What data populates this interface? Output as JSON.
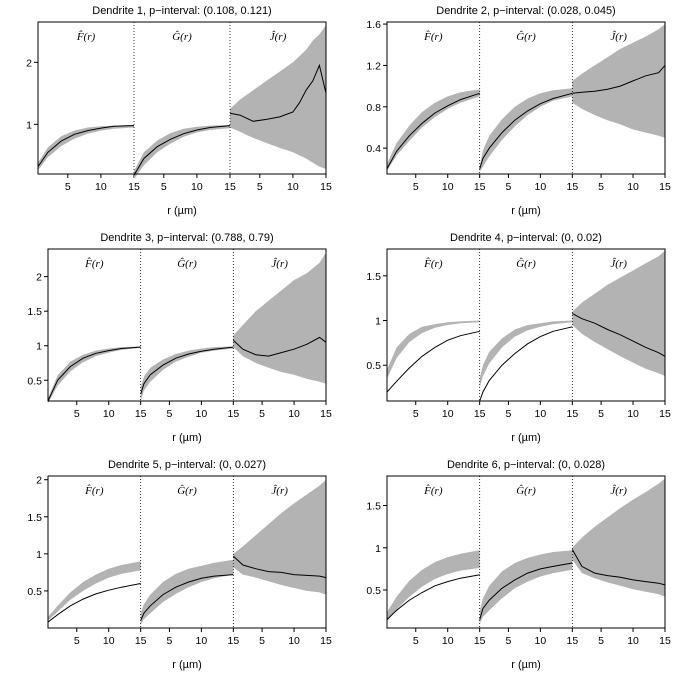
{
  "figure": {
    "xlabel": "r (µm)",
    "function_labels": [
      "F̂(r)",
      "Ĝ(r)",
      "Ĵ(r)"
    ]
  },
  "chart_data": [
    {
      "type": "line",
      "title": "Dendrite 1, p−interval: (0.108, 0.121)",
      "xlabel": "r (µm)",
      "x_ticks": [
        5,
        10,
        15
      ],
      "y_ticks": [
        1,
        2
      ],
      "ylim": [
        0.2,
        2.65
      ],
      "xlim": [
        0.5,
        15
      ],
      "grid": false,
      "panels": [
        {
          "name": "F̂(r)",
          "x": [
            0.5,
            2,
            4,
            6,
            8,
            10,
            12,
            15
          ],
          "observed": [
            0.32,
            0.55,
            0.73,
            0.84,
            0.9,
            0.94,
            0.97,
            0.98
          ],
          "envelope_lo": [
            0.26,
            0.47,
            0.65,
            0.77,
            0.85,
            0.9,
            0.93,
            0.95
          ],
          "envelope_hi": [
            0.38,
            0.63,
            0.81,
            0.9,
            0.95,
            0.97,
            0.98,
            0.99
          ]
        },
        {
          "name": "Ĝ(r)",
          "x": [
            0.5,
            2,
            4,
            6,
            8,
            10,
            12,
            15
          ],
          "observed": [
            0.18,
            0.45,
            0.64,
            0.76,
            0.85,
            0.91,
            0.95,
            0.98
          ],
          "envelope_lo": [
            0.12,
            0.34,
            0.55,
            0.69,
            0.8,
            0.87,
            0.91,
            0.94
          ],
          "envelope_hi": [
            0.25,
            0.55,
            0.74,
            0.86,
            0.93,
            0.96,
            0.98,
            0.99
          ]
        },
        {
          "name": "Ĵ(r)",
          "x": [
            0.5,
            2,
            4,
            6,
            8,
            10,
            11,
            12,
            13,
            14,
            15
          ],
          "observed": [
            1.18,
            1.15,
            1.05,
            1.08,
            1.12,
            1.2,
            1.35,
            1.55,
            1.7,
            1.95,
            1.5
          ],
          "envelope_lo": [
            0.95,
            0.88,
            0.78,
            0.7,
            0.62,
            0.55,
            0.5,
            0.45,
            0.38,
            0.32,
            0.28
          ],
          "envelope_hi": [
            1.25,
            1.4,
            1.55,
            1.7,
            1.85,
            2.0,
            2.1,
            2.2,
            2.35,
            2.45,
            2.6
          ]
        }
      ]
    },
    {
      "type": "line",
      "title": "Dendrite 2, p−interval: (0.028, 0.045)",
      "xlabel": "r (µm)",
      "x_ticks": [
        5,
        10,
        15
      ],
      "y_ticks": [
        0.4,
        0.8,
        1.2,
        1.6
      ],
      "ylim": [
        0.15,
        1.62
      ],
      "xlim": [
        0.5,
        15
      ],
      "grid": false,
      "panels": [
        {
          "name": "F̂(r)",
          "x": [
            0.5,
            2,
            4,
            6,
            8,
            10,
            12,
            15
          ],
          "observed": [
            0.2,
            0.37,
            0.52,
            0.64,
            0.74,
            0.81,
            0.87,
            0.93
          ],
          "envelope_lo": [
            0.18,
            0.33,
            0.47,
            0.6,
            0.7,
            0.78,
            0.84,
            0.9
          ],
          "envelope_hi": [
            0.25,
            0.45,
            0.62,
            0.75,
            0.84,
            0.9,
            0.94,
            0.97
          ]
        },
        {
          "name": "Ĝ(r)",
          "x": [
            0.5,
            1,
            2,
            4,
            6,
            8,
            10,
            12,
            15
          ],
          "observed": [
            0.2,
            0.3,
            0.4,
            0.55,
            0.67,
            0.76,
            0.83,
            0.88,
            0.93
          ],
          "envelope_lo": [
            0.17,
            0.22,
            0.32,
            0.48,
            0.61,
            0.72,
            0.8,
            0.86,
            0.9
          ],
          "envelope_hi": [
            0.22,
            0.38,
            0.52,
            0.68,
            0.8,
            0.88,
            0.93,
            0.96,
            0.98
          ]
        },
        {
          "name": "Ĵ(r)",
          "x": [
            0.5,
            2,
            4,
            6,
            8,
            10,
            12,
            14,
            15
          ],
          "observed": [
            0.93,
            0.94,
            0.95,
            0.97,
            1.0,
            1.05,
            1.1,
            1.13,
            1.2
          ],
          "envelope_lo": [
            0.84,
            0.78,
            0.72,
            0.67,
            0.63,
            0.58,
            0.55,
            0.52,
            0.5
          ],
          "envelope_hi": [
            1.05,
            1.12,
            1.2,
            1.28,
            1.36,
            1.42,
            1.48,
            1.55,
            1.6
          ]
        }
      ]
    },
    {
      "type": "line",
      "title": "Dendrite 3, p−interval: (0.788, 0.79)",
      "xlabel": "r (µm)",
      "x_ticks": [
        5,
        10,
        15
      ],
      "y_ticks": [
        0.5,
        1.0,
        1.5,
        2.0
      ],
      "ylim": [
        0.2,
        2.4
      ],
      "xlim": [
        0.5,
        15
      ],
      "grid": false,
      "panels": [
        {
          "name": "F̂(r)",
          "x": [
            0.5,
            2,
            4,
            6,
            8,
            10,
            12,
            15
          ],
          "observed": [
            0.2,
            0.5,
            0.7,
            0.82,
            0.89,
            0.93,
            0.96,
            0.98
          ],
          "envelope_lo": [
            0.17,
            0.42,
            0.63,
            0.76,
            0.85,
            0.9,
            0.94,
            0.97
          ],
          "envelope_hi": [
            0.24,
            0.57,
            0.77,
            0.87,
            0.93,
            0.96,
            0.98,
            0.99
          ]
        },
        {
          "name": "Ĝ(r)",
          "x": [
            0.5,
            1,
            2,
            4,
            6,
            8,
            10,
            12,
            15
          ],
          "observed": [
            0.3,
            0.45,
            0.58,
            0.72,
            0.82,
            0.88,
            0.92,
            0.95,
            0.98
          ],
          "envelope_lo": [
            0.2,
            0.35,
            0.48,
            0.65,
            0.77,
            0.84,
            0.9,
            0.93,
            0.96
          ],
          "envelope_hi": [
            0.4,
            0.55,
            0.68,
            0.8,
            0.88,
            0.93,
            0.96,
            0.98,
            0.99
          ]
        },
        {
          "name": "Ĵ(r)",
          "x": [
            0.5,
            2,
            4,
            6,
            8,
            10,
            12,
            14,
            15
          ],
          "observed": [
            1.08,
            0.95,
            0.87,
            0.85,
            0.9,
            0.95,
            1.02,
            1.12,
            1.05
          ],
          "envelope_lo": [
            0.98,
            0.85,
            0.75,
            0.68,
            0.62,
            0.58,
            0.52,
            0.48,
            0.45
          ],
          "envelope_hi": [
            1.15,
            1.3,
            1.5,
            1.65,
            1.8,
            1.95,
            2.05,
            2.2,
            2.35
          ]
        }
      ]
    },
    {
      "type": "line",
      "title": "Dendrite 4, p−interval: (0, 0.02)",
      "xlabel": "r (µm)",
      "x_ticks": [
        5,
        10,
        15
      ],
      "y_ticks": [
        0.5,
        1.0,
        1.5
      ],
      "ylim": [
        0.1,
        1.8
      ],
      "xlim": [
        0.5,
        15
      ],
      "grid": false,
      "panels": [
        {
          "name": "F̂(r)",
          "x": [
            0.5,
            2,
            4,
            6,
            8,
            10,
            12,
            15
          ],
          "observed": [
            0.2,
            0.32,
            0.47,
            0.6,
            0.7,
            0.78,
            0.83,
            0.88
          ],
          "envelope_lo": [
            0.35,
            0.58,
            0.76,
            0.86,
            0.92,
            0.95,
            0.97,
            0.98
          ],
          "envelope_hi": [
            0.45,
            0.7,
            0.85,
            0.93,
            0.96,
            0.98,
            0.99,
            1.0
          ]
        },
        {
          "name": "Ĝ(r)",
          "x": [
            0.5,
            1,
            2,
            4,
            6,
            8,
            10,
            12,
            15
          ],
          "observed": [
            0.1,
            0.2,
            0.33,
            0.5,
            0.63,
            0.74,
            0.82,
            0.88,
            0.93
          ],
          "envelope_lo": [
            0.25,
            0.38,
            0.52,
            0.7,
            0.82,
            0.89,
            0.93,
            0.96,
            0.98
          ],
          "envelope_hi": [
            0.35,
            0.5,
            0.65,
            0.8,
            0.9,
            0.95,
            0.97,
            0.99,
            1.0
          ]
        },
        {
          "name": "Ĵ(r)",
          "x": [
            0.5,
            2,
            4,
            6,
            8,
            10,
            12,
            14,
            15
          ],
          "observed": [
            1.08,
            1.02,
            0.97,
            0.9,
            0.84,
            0.77,
            0.7,
            0.64,
            0.6
          ],
          "envelope_lo": [
            0.95,
            0.85,
            0.76,
            0.68,
            0.6,
            0.53,
            0.46,
            0.41,
            0.38
          ],
          "envelope_hi": [
            1.1,
            1.2,
            1.3,
            1.4,
            1.48,
            1.56,
            1.64,
            1.72,
            1.78
          ]
        }
      ]
    },
    {
      "type": "line",
      "title": "Dendrite 5, p−interval: (0, 0.027)",
      "xlabel": "r (µm)",
      "x_ticks": [
        5,
        10,
        15
      ],
      "y_ticks": [
        0.5,
        1.0,
        1.5,
        2.0
      ],
      "ylim": [
        0.0,
        2.05
      ],
      "xlim": [
        0.5,
        15
      ],
      "grid": false,
      "panels": [
        {
          "name": "F̂(r)",
          "x": [
            0.5,
            2,
            4,
            6,
            8,
            10,
            12,
            15
          ],
          "observed": [
            0.08,
            0.18,
            0.3,
            0.39,
            0.46,
            0.51,
            0.55,
            0.6
          ],
          "envelope_lo": [
            0.1,
            0.22,
            0.38,
            0.5,
            0.6,
            0.68,
            0.73,
            0.78
          ],
          "envelope_hi": [
            0.15,
            0.3,
            0.48,
            0.62,
            0.72,
            0.8,
            0.85,
            0.9
          ]
        },
        {
          "name": "Ĝ(r)",
          "x": [
            0.5,
            1,
            2,
            4,
            6,
            8,
            10,
            12,
            15
          ],
          "observed": [
            0.1,
            0.2,
            0.3,
            0.45,
            0.55,
            0.62,
            0.67,
            0.7,
            0.72
          ],
          "envelope_lo": [
            0.05,
            0.12,
            0.2,
            0.35,
            0.46,
            0.55,
            0.62,
            0.67,
            0.72
          ],
          "envelope_hi": [
            0.2,
            0.32,
            0.45,
            0.62,
            0.73,
            0.8,
            0.84,
            0.88,
            0.92
          ]
        },
        {
          "name": "Ĵ(r)",
          "x": [
            0.5,
            2,
            4,
            6,
            8,
            10,
            12,
            14,
            15
          ],
          "observed": [
            0.97,
            0.85,
            0.8,
            0.76,
            0.75,
            0.72,
            0.71,
            0.7,
            0.68
          ],
          "envelope_lo": [
            0.82,
            0.72,
            0.68,
            0.63,
            0.58,
            0.54,
            0.5,
            0.48,
            0.45
          ],
          "envelope_hi": [
            1.0,
            1.1,
            1.25,
            1.4,
            1.55,
            1.68,
            1.8,
            1.92,
            2.0
          ]
        }
      ]
    },
    {
      "type": "line",
      "title": "Dendrite 6, p−interval: (0, 0.028)",
      "xlabel": "r (µm)",
      "x_ticks": [
        5,
        10,
        15
      ],
      "y_ticks": [
        0.5,
        1.0,
        1.5
      ],
      "ylim": [
        0.05,
        1.85
      ],
      "xlim": [
        0.5,
        15
      ],
      "grid": false,
      "panels": [
        {
          "name": "F̂(r)",
          "x": [
            0.5,
            2,
            4,
            6,
            8,
            10,
            12,
            15
          ],
          "observed": [
            0.15,
            0.26,
            0.38,
            0.47,
            0.55,
            0.6,
            0.64,
            0.68
          ],
          "envelope_lo": [
            0.13,
            0.27,
            0.42,
            0.54,
            0.63,
            0.69,
            0.73,
            0.76
          ],
          "envelope_hi": [
            0.24,
            0.42,
            0.61,
            0.74,
            0.83,
            0.89,
            0.93,
            0.97
          ]
        },
        {
          "name": "Ĝ(r)",
          "x": [
            0.5,
            1,
            2,
            4,
            6,
            8,
            10,
            12,
            15
          ],
          "observed": [
            0.15,
            0.28,
            0.38,
            0.52,
            0.62,
            0.7,
            0.75,
            0.78,
            0.82
          ],
          "envelope_lo": [
            0.1,
            0.18,
            0.26,
            0.4,
            0.52,
            0.6,
            0.66,
            0.7,
            0.74
          ],
          "envelope_hi": [
            0.25,
            0.4,
            0.55,
            0.72,
            0.82,
            0.88,
            0.92,
            0.95,
            0.97
          ]
        },
        {
          "name": "Ĵ(r)",
          "x": [
            0.5,
            2,
            4,
            6,
            8,
            10,
            12,
            14,
            15
          ],
          "observed": [
            0.98,
            0.78,
            0.7,
            0.67,
            0.65,
            0.62,
            0.6,
            0.58,
            0.56
          ],
          "envelope_lo": [
            0.86,
            0.7,
            0.64,
            0.59,
            0.55,
            0.51,
            0.48,
            0.45,
            0.42
          ],
          "envelope_hi": [
            1.0,
            1.12,
            1.25,
            1.36,
            1.47,
            1.57,
            1.66,
            1.76,
            1.82
          ]
        }
      ]
    }
  ]
}
